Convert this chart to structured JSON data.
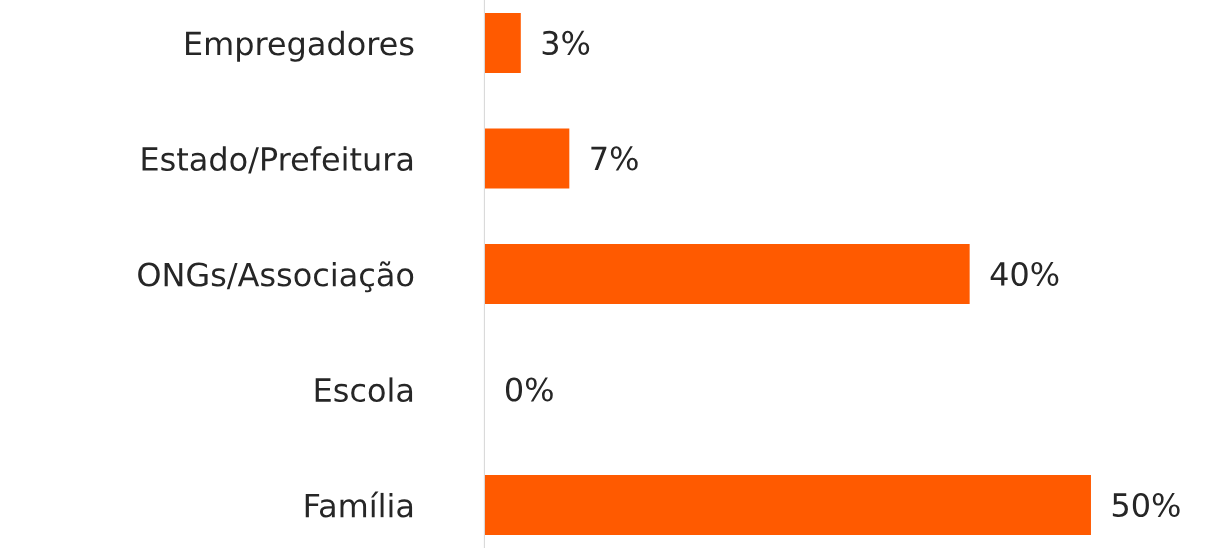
{
  "chart_data": {
    "type": "bar",
    "orientation": "horizontal",
    "categories": [
      "Empregadores",
      "Estado/Prefeitura",
      "ONGs/Associação",
      "Escola",
      "Família"
    ],
    "values": [
      3,
      7,
      40,
      0,
      50
    ],
    "value_labels": [
      "3%",
      "7%",
      "40%",
      "0%",
      "50%"
    ],
    "color": "#ff5a00",
    "grid": false,
    "legend": false
  }
}
